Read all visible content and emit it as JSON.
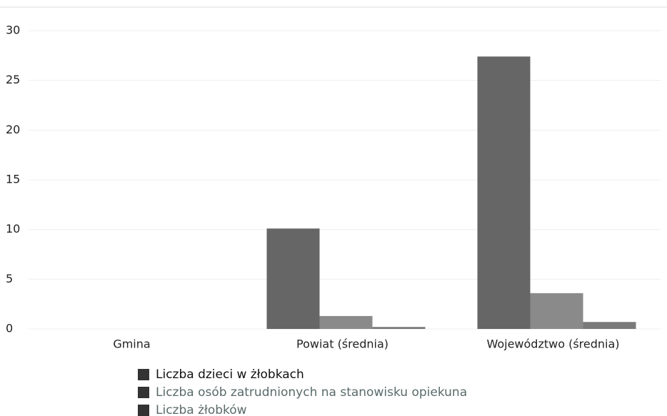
{
  "chart_data": {
    "type": "bar",
    "categories": [
      "Gmina",
      "Powiat (średnia)",
      "Województwo (średnia)"
    ],
    "series": [
      {
        "name": "Liczba dzieci w żłobkach",
        "color": "#666666",
        "values": [
          0,
          10.1,
          27.4
        ]
      },
      {
        "name": "Liczba osób zatrudnionych na stanowisku opiekuna",
        "color": "#8a8a8a",
        "values": [
          0,
          1.3,
          3.6
        ]
      },
      {
        "name": "Liczba żłobków",
        "color": "#7a7a7a",
        "values": [
          0,
          0.2,
          0.7
        ]
      }
    ],
    "ylim": [
      0,
      30
    ],
    "yticks": [
      0,
      5,
      10,
      15,
      20,
      25,
      30
    ],
    "grid": true,
    "legend": "bottom"
  }
}
